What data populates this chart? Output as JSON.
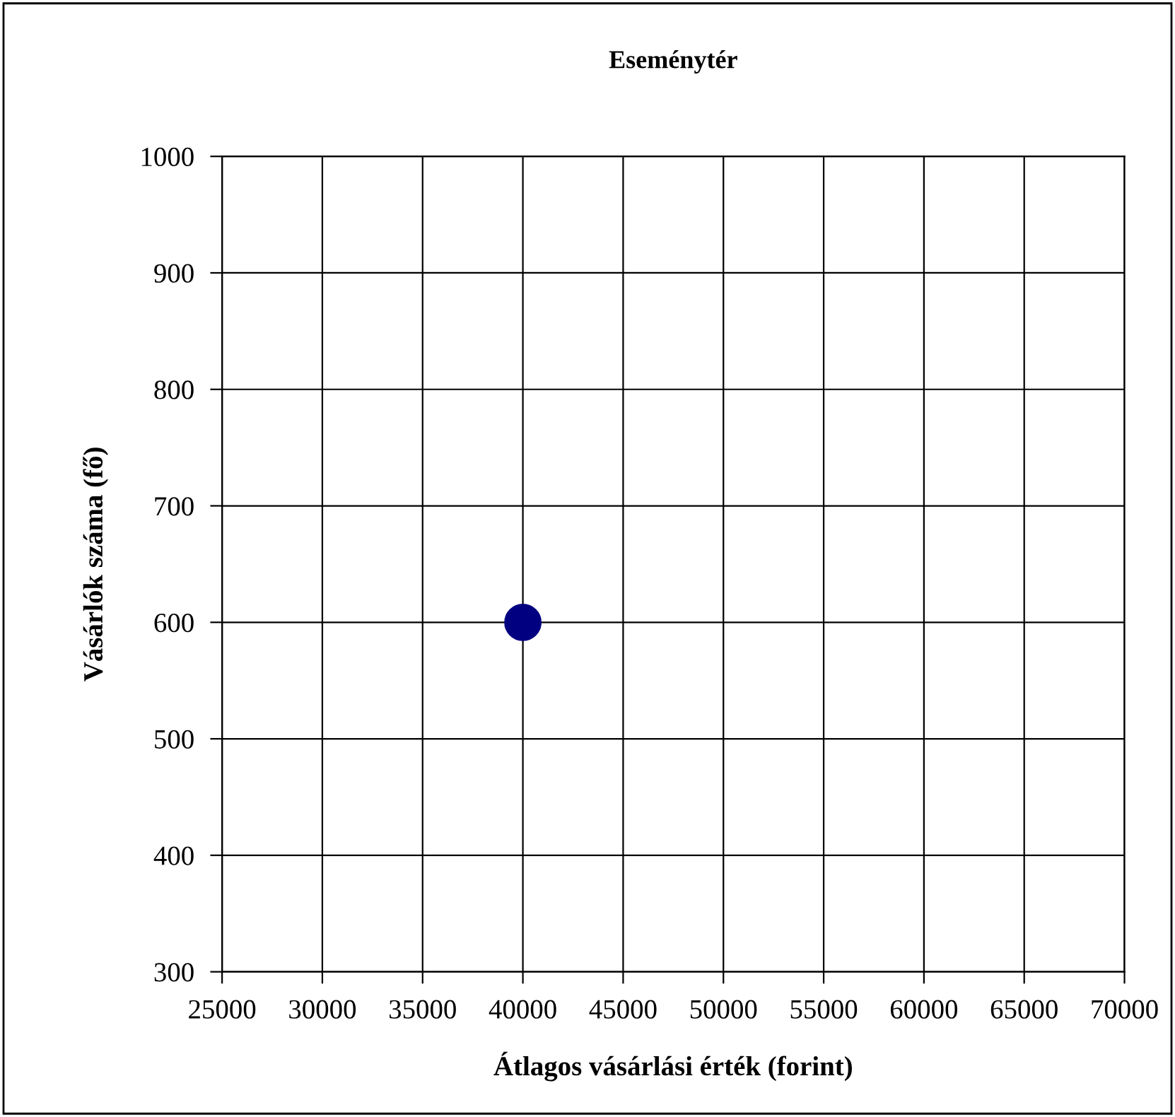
{
  "chart_data": {
    "type": "scatter",
    "title": "Eseménytér",
    "xlabel": "Átlagos vásárlási érték (forint)",
    "ylabel": "Vásárlók száma (fő)",
    "x": [
      40000
    ],
    "values": [
      600
    ],
    "color": "#000080",
    "marker": "circle",
    "xlim": [
      25000,
      70000
    ],
    "xticks": [
      25000,
      30000,
      35000,
      40000,
      45000,
      50000,
      55000,
      60000,
      65000,
      70000
    ],
    "ylim": [
      300,
      1000
    ],
    "yticks": [
      300,
      400,
      500,
      600,
      700,
      800,
      900,
      1000
    ],
    "grid": true
  }
}
